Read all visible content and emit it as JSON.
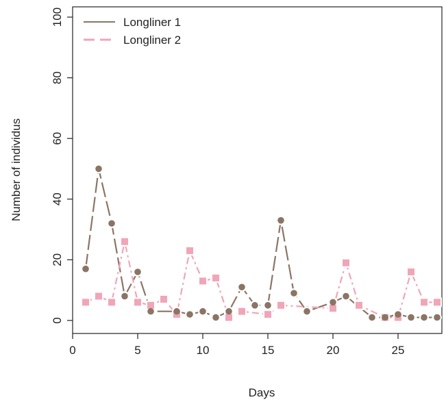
{
  "chart_data": {
    "type": "line",
    "title": "",
    "xlabel": "Days",
    "ylabel": "Number of individus",
    "xlim": [
      0,
      28.3
    ],
    "ylim": [
      0,
      100
    ],
    "x_ticks": [
      0,
      5,
      10,
      15,
      20,
      25
    ],
    "y_ticks": [
      0,
      20,
      40,
      60,
      80,
      100
    ],
    "grid": false,
    "legend_position": "top-left",
    "series": [
      {
        "name": "Longliner 1",
        "color": "#8a7565",
        "line_style": "solid-dashed",
        "marker": "circle",
        "points": [
          {
            "x": 1,
            "y": 17
          },
          {
            "x": 2,
            "y": 50
          },
          {
            "x": 3,
            "y": 32
          },
          {
            "x": 4,
            "y": 8
          },
          {
            "x": 5,
            "y": 16
          },
          {
            "x": 6,
            "y": 3
          },
          {
            "x": 8,
            "y": 3
          },
          {
            "x": 9,
            "y": 2
          },
          {
            "x": 10,
            "y": 3
          },
          {
            "x": 11,
            "y": 1
          },
          {
            "x": 12,
            "y": 3
          },
          {
            "x": 13,
            "y": 11
          },
          {
            "x": 14,
            "y": 5
          },
          {
            "x": 15,
            "y": 5
          },
          {
            "x": 16,
            "y": 33
          },
          {
            "x": 17,
            "y": 9
          },
          {
            "x": 18,
            "y": 3
          },
          {
            "x": 20,
            "y": 6
          },
          {
            "x": 21,
            "y": 8
          },
          {
            "x": 23,
            "y": 1
          },
          {
            "x": 24,
            "y": 1
          },
          {
            "x": 25,
            "y": 2
          },
          {
            "x": 26,
            "y": 1
          },
          {
            "x": 27,
            "y": 1
          },
          {
            "x": 28,
            "y": 1
          }
        ]
      },
      {
        "name": "Longliner 2",
        "color": "#f0a6b8",
        "line_style": "dash-dot",
        "marker": "square",
        "points": [
          {
            "x": 1,
            "y": 6
          },
          {
            "x": 2,
            "y": 8
          },
          {
            "x": 3,
            "y": 6
          },
          {
            "x": 4,
            "y": 26
          },
          {
            "x": 5,
            "y": 6
          },
          {
            "x": 6,
            "y": 5
          },
          {
            "x": 7,
            "y": 7
          },
          {
            "x": 8,
            "y": 2
          },
          {
            "x": 9,
            "y": 23
          },
          {
            "x": 10,
            "y": 13
          },
          {
            "x": 11,
            "y": 14
          },
          {
            "x": 12,
            "y": 1
          },
          {
            "x": 13,
            "y": 3
          },
          {
            "x": 15,
            "y": 2
          },
          {
            "x": 16,
            "y": 5
          },
          {
            "x": 20,
            "y": 4
          },
          {
            "x": 21,
            "y": 19
          },
          {
            "x": 22,
            "y": 5
          },
          {
            "x": 24,
            "y": 1
          },
          {
            "x": 25,
            "y": 1
          },
          {
            "x": 26,
            "y": 16
          },
          {
            "x": 27,
            "y": 6
          },
          {
            "x": 28,
            "y": 6
          }
        ]
      }
    ]
  }
}
